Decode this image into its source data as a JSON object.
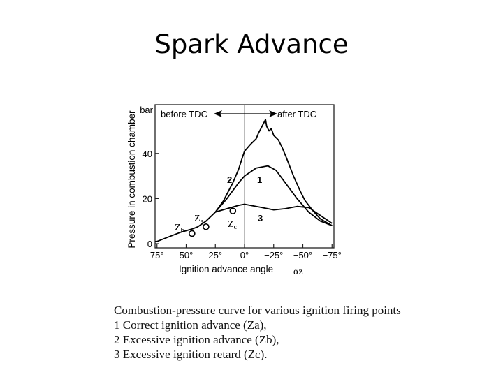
{
  "slide": {
    "title": "Spark Advance"
  },
  "chart_data": {
    "type": "line",
    "ylabel": "Pressure in combustion chamber",
    "yunit": "bar",
    "ylim": [
      0,
      56
    ],
    "yticks": [
      {
        "value": 0,
        "label": "0"
      },
      {
        "value": 20,
        "label": "20"
      },
      {
        "value": 40,
        "label": "40"
      }
    ],
    "xlabel": "Ignition advance angle",
    "xlabel_symbol": "αz",
    "xlim": [
      75,
      -75
    ],
    "xticks": [
      {
        "value": 75,
        "label": "75°"
      },
      {
        "value": 50,
        "label": "50°"
      },
      {
        "value": 25,
        "label": "25°"
      },
      {
        "value": 0,
        "label": "0°"
      },
      {
        "value": -25,
        "label": "−25°"
      },
      {
        "value": -50,
        "label": "−50°"
      },
      {
        "value": -75,
        "label": "−75°"
      }
    ],
    "annotations": {
      "before_tdc": "before TDC",
      "after_tdc": "after TDC"
    },
    "series": [
      {
        "name": "1",
        "label": "1",
        "points": [
          [
            94,
            0.2
          ],
          [
            75,
            1
          ],
          [
            65,
            3
          ],
          [
            55,
            5
          ],
          [
            45,
            6.5
          ],
          [
            40,
            7.5
          ],
          [
            33,
            10
          ],
          [
            25,
            14
          ],
          [
            15,
            20
          ],
          [
            5,
            27
          ],
          [
            0,
            30
          ],
          [
            -10,
            33.5
          ],
          [
            -20,
            34.5
          ],
          [
            -27,
            32.5
          ],
          [
            -35,
            27
          ],
          [
            -45,
            20
          ],
          [
            -55,
            14
          ],
          [
            -65,
            10
          ],
          [
            -75,
            8
          ]
        ]
      },
      {
        "name": "2",
        "label": "2",
        "points": [
          [
            25,
            14
          ],
          [
            18,
            19
          ],
          [
            10,
            27
          ],
          [
            5,
            33
          ],
          [
            2,
            38
          ],
          [
            0,
            41
          ],
          [
            -5,
            44
          ],
          [
            -10,
            46.5
          ],
          [
            -12,
            49
          ],
          [
            -14,
            51
          ],
          [
            -16,
            53
          ],
          [
            -18,
            55
          ],
          [
            -19,
            52
          ],
          [
            -21,
            50
          ],
          [
            -23,
            51
          ],
          [
            -25,
            48
          ],
          [
            -27,
            47
          ],
          [
            -29,
            46
          ],
          [
            -32,
            43
          ],
          [
            -36,
            38
          ],
          [
            -42,
            30
          ],
          [
            -48,
            23
          ],
          [
            -52,
            19
          ],
          [
            -58,
            15
          ],
          [
            -65,
            11
          ],
          [
            -75,
            8
          ]
        ]
      },
      {
        "name": "3",
        "label": "3",
        "points": [
          [
            25,
            14
          ],
          [
            15,
            15.5
          ],
          [
            5,
            17
          ],
          [
            0,
            17.5
          ],
          [
            -5,
            17
          ],
          [
            -15,
            16
          ],
          [
            -25,
            15
          ],
          [
            -35,
            15.5
          ],
          [
            -45,
            16.5
          ],
          [
            -55,
            16
          ],
          [
            -65,
            12.5
          ],
          [
            -75,
            9
          ]
        ]
      }
    ],
    "ignition_points": [
      {
        "name": "Zb",
        "label": "Zb",
        "x": 45,
        "y": 4.5
      },
      {
        "name": "Za",
        "label": "Za",
        "x": 33,
        "y": 7.5
      },
      {
        "name": "Zc",
        "label": "Zc",
        "x": 10,
        "y": 14.5
      }
    ]
  },
  "caption": {
    "heading": "Combustion-pressure curve for various ignition firing points",
    "lines": [
      "1 Correct ignition advance (Za),",
      "2 Excessive ignition advance (Zb),",
      "3 Excessive ignition retard (Zc)."
    ]
  }
}
